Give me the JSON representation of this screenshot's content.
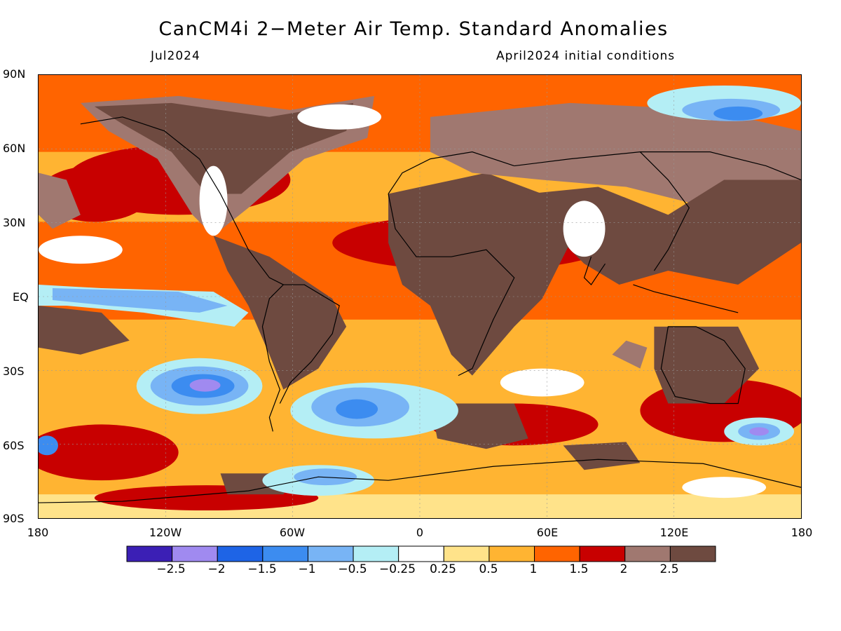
{
  "title": "CanCM4i 2−Meter Air Temp. Standard Anomalies",
  "valid_month": "Jul2024",
  "init_label": "April2024 initial conditions",
  "lat_labels": [
    "90N",
    "60N",
    "30N",
    "EQ",
    "30S",
    "60S",
    "90S"
  ],
  "lon_labels": [
    "180",
    "120W",
    "60W",
    "0",
    "60E",
    "120E",
    "180"
  ],
  "legend": {
    "colors": [
      "#3b1fb5",
      "#a08af0",
      "#1e64e6",
      "#3c8cf0",
      "#78b4f5",
      "#b4eef5",
      "#ffffff",
      "#ffe38a",
      "#ffb432",
      "#ff6400",
      "#c80000",
      "#a07870",
      "#6e4a40"
    ],
    "labels": [
      "−2.5",
      "−2",
      "−1.5",
      "−1",
      "−0.5",
      "−0.25",
      "0.25",
      "0.5",
      "1",
      "1.5",
      "2",
      "2.5"
    ]
  }
}
